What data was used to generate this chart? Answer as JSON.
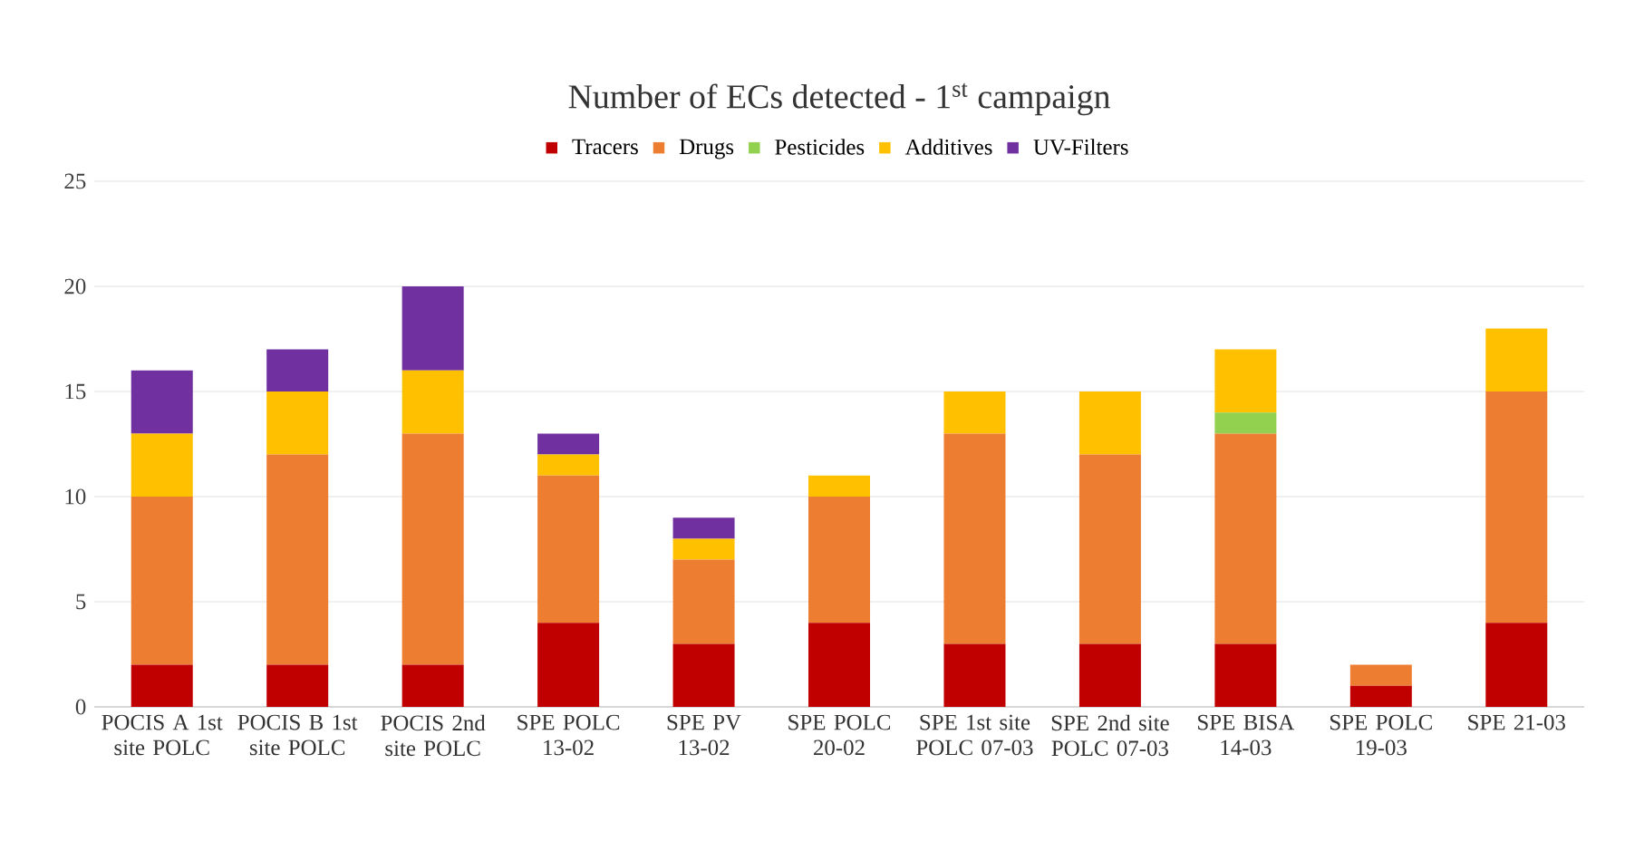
{
  "chart_data": {
    "type": "bar",
    "stacked": true,
    "title": "Number of ECs detected - 1$^{st}$ campaign",
    "categories": [
      "POCIS A 1st site POLC",
      "POCIS B 1st site POLC",
      "POCIS 2nd site POLC",
      "SPE POLC 13-02",
      "SPE PV 13-02",
      "SPE POLC 20-02",
      "SPE 1st site POLC 07-03",
      "SPE 2nd site POLC 07-03",
      "SPE BISA 14-03",
      "SPE POLC 19-03",
      "SPE 21-03"
    ],
    "series": [
      {
        "name": "Tracers",
        "color": "#c00000",
        "values": [
          2,
          2,
          2,
          4,
          3,
          4,
          3,
          3,
          3,
          1,
          4
        ]
      },
      {
        "name": "Drugs",
        "color": "#ed7d31",
        "values": [
          8,
          10,
          11,
          7,
          4,
          6,
          10,
          9,
          10,
          1,
          11
        ]
      },
      {
        "name": "Pesticides",
        "color": "#92d050",
        "values": [
          0,
          0,
          0,
          0,
          0,
          0,
          0,
          0,
          1,
          0,
          0
        ]
      },
      {
        "name": "Additives",
        "color": "#ffc000",
        "values": [
          3,
          3,
          3,
          1,
          1,
          1,
          2,
          3,
          3,
          0,
          3
        ]
      },
      {
        "name": "UV-Filters",
        "color": "#7030a0",
        "values": [
          3,
          2,
          4,
          1,
          1,
          0,
          0,
          0,
          0,
          0,
          0
        ]
      }
    ],
    "ylim": [
      0,
      25
    ],
    "yticks": [
      0,
      5,
      10,
      15,
      20,
      25
    ],
    "grid": "y",
    "legend": "top"
  }
}
